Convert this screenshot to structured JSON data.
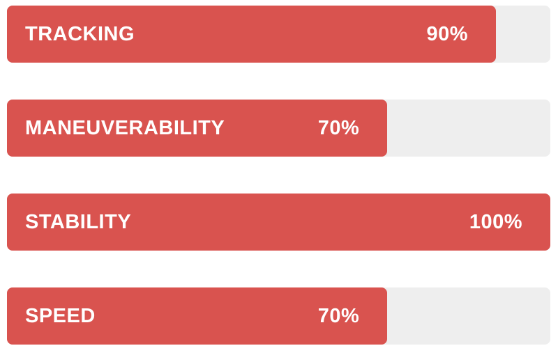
{
  "chart_data": {
    "type": "bar",
    "orientation": "horizontal",
    "categories": [
      "TRACKING",
      "MANEUVERABILITY",
      "STABILITY",
      "SPEED"
    ],
    "values": [
      90,
      70,
      100,
      70
    ],
    "value_labels": [
      "90%",
      "70%",
      "100%",
      "70%"
    ],
    "xlim": [
      0,
      100
    ],
    "grid": false,
    "legend": false,
    "colors": {
      "bar": "#d9534f",
      "track": "#eeeeee",
      "text": "#ffffff",
      "background": "#ffffff"
    }
  },
  "bars": [
    {
      "label": "TRACKING",
      "percent": 90,
      "percent_label": "90%"
    },
    {
      "label": "MANEUVERABILITY",
      "percent": 70,
      "percent_label": "70%"
    },
    {
      "label": "STABILITY",
      "percent": 100,
      "percent_label": "100%"
    },
    {
      "label": "SPEED",
      "percent": 70,
      "percent_label": "70%"
    }
  ]
}
